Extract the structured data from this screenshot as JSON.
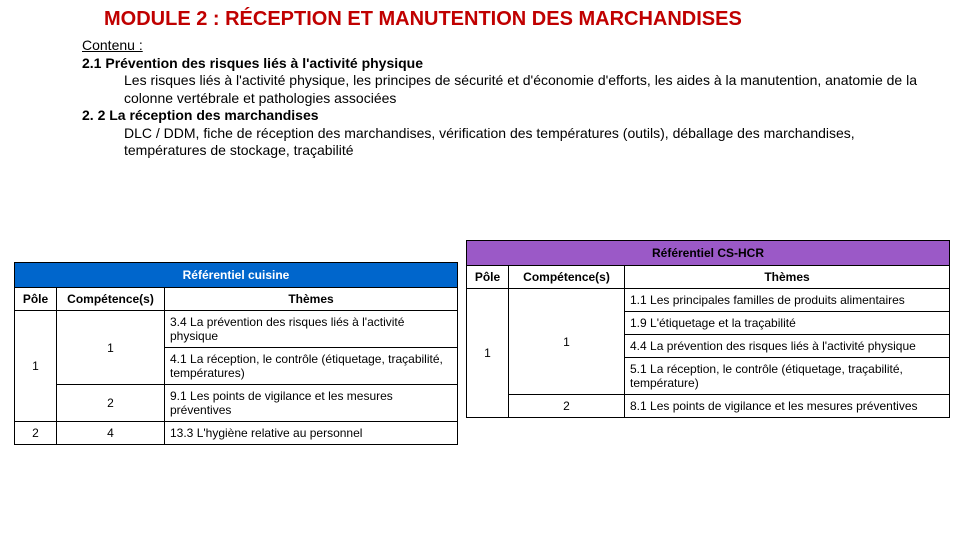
{
  "title": {
    "text": "MODULE 2 : RÉCEPTION ET MANUTENTION DES MARCHANDISES",
    "color": "#c00000",
    "fontsize": 20
  },
  "content": {
    "heading": "Contenu :",
    "s1_title": "2.1 Prévention des risques liés à l'activité physique",
    "s1_body": "Les risques liés à l'activité physique, les principes de sécurité et d'économie d'efforts, les aides à la manutention, anatomie de la colonne vertébrale et pathologies associées",
    "s2_title": "2. 2 La réception des marchandises",
    "s2_body": "DLC / DDM, fiche de réception des marchandises, vérification des températures (outils), déballage des marchandises, températures de stockage, traçabilité"
  },
  "cuisine": {
    "title": "Référentiel cuisine",
    "header_bg": "#0066cc",
    "cols": {
      "pole": "Pôle",
      "comp": "Compétence(s)",
      "theme": "Thèmes"
    },
    "rows": [
      {
        "pole": "1",
        "comp": "1",
        "theme1": "3.4 La prévention des risques liés à l'activité physique",
        "theme2": "4.1 La réception, le contrôle (étiquetage, traçabilité, températures)"
      },
      {
        "comp": "2",
        "theme": "9.1 Les points de vigilance et les mesures préventives"
      },
      {
        "pole": "2",
        "comp": "4",
        "theme": "13.3 L'hygiène relative au personnel"
      }
    ]
  },
  "cshcr": {
    "title": "Référentiel CS-HCR",
    "header_bg": "#9b59c7",
    "cols": {
      "pole": "Pôle",
      "comp": "Compétence(s)",
      "theme": "Thèmes"
    },
    "rows": [
      {
        "pole": "1",
        "comp": "1",
        "themes": [
          "1.1 Les principales familles de produits alimentaires",
          "1.9 L'étiquetage et la traçabilité",
          "4.4 La prévention des risques liés à l'activité physique",
          "5.1 La réception, le contrôle (étiquetage, traçabilité, température)"
        ]
      },
      {
        "comp": "2",
        "theme": "8.1 Les points de vigilance et les mesures préventives"
      }
    ]
  }
}
